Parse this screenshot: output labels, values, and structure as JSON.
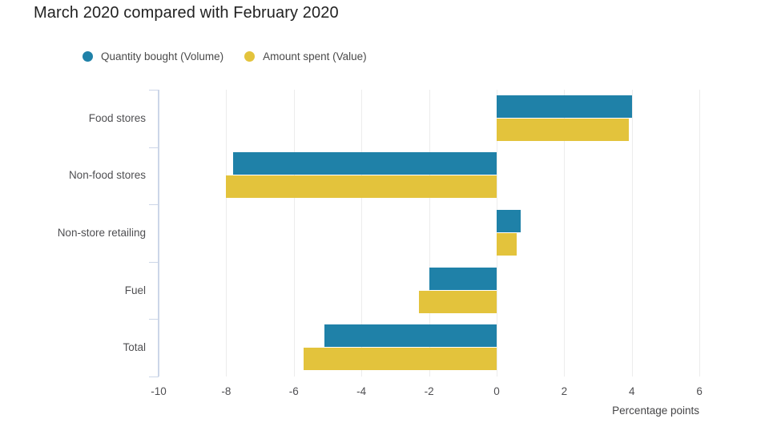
{
  "title": "March 2020 compared with February 2020",
  "legend": {
    "items": [
      {
        "label": "Quantity bought (Volume)",
        "series": "volume"
      },
      {
        "label": "Amount spent (Value)",
        "series": "value"
      }
    ]
  },
  "colors": {
    "volume": "#1f81a8",
    "value": "#e3c33c",
    "axis_line": "#ccd6e8",
    "gridline": "#ececec",
    "title_text": "#222222",
    "label_text": "#4f4f52"
  },
  "chart_data": {
    "type": "bar",
    "orientation": "horizontal",
    "title": "March 2020 compared with February 2020",
    "categories": [
      "Food stores",
      "Non-food stores",
      "Non-store retailing",
      "Fuel",
      "Total"
    ],
    "series": [
      {
        "name": "Quantity bought (Volume)",
        "key": "volume",
        "color": "#1f81a8",
        "values": [
          4.0,
          -7.8,
          0.7,
          -2.0,
          -5.1
        ]
      },
      {
        "name": "Amount spent (Value)",
        "key": "value",
        "color": "#e3c33c",
        "values": [
          3.9,
          -8.0,
          0.6,
          -2.3,
          -5.7
        ]
      }
    ],
    "xlabel": "Percentage points",
    "ylabel": "",
    "xlim": [
      -10,
      6
    ],
    "xticks": [
      -10,
      -8,
      -6,
      -4,
      -2,
      0,
      2,
      4,
      6
    ],
    "grid": true,
    "legend_position": "top"
  }
}
